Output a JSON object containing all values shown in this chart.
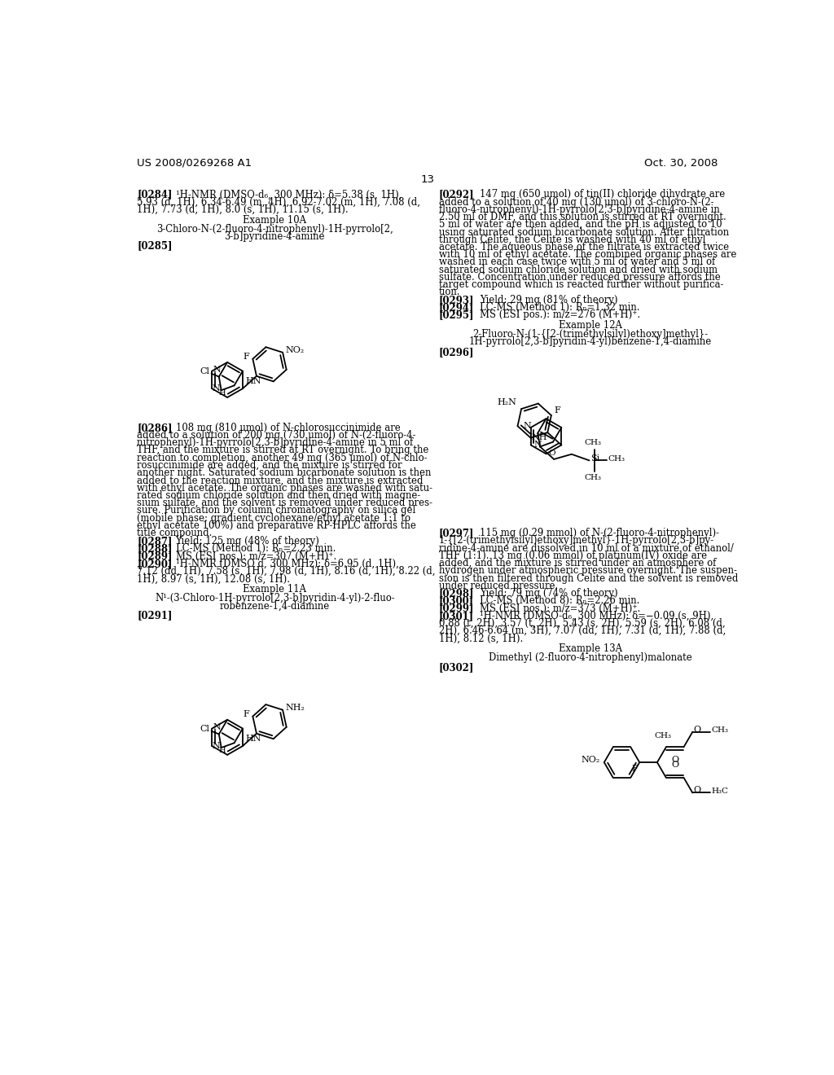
{
  "page_width": 10.24,
  "page_height": 13.2,
  "bg_color": "#ffffff",
  "header_left": "US 2008/0269268 A1",
  "header_right": "Oct. 30, 2008",
  "page_number": "13"
}
